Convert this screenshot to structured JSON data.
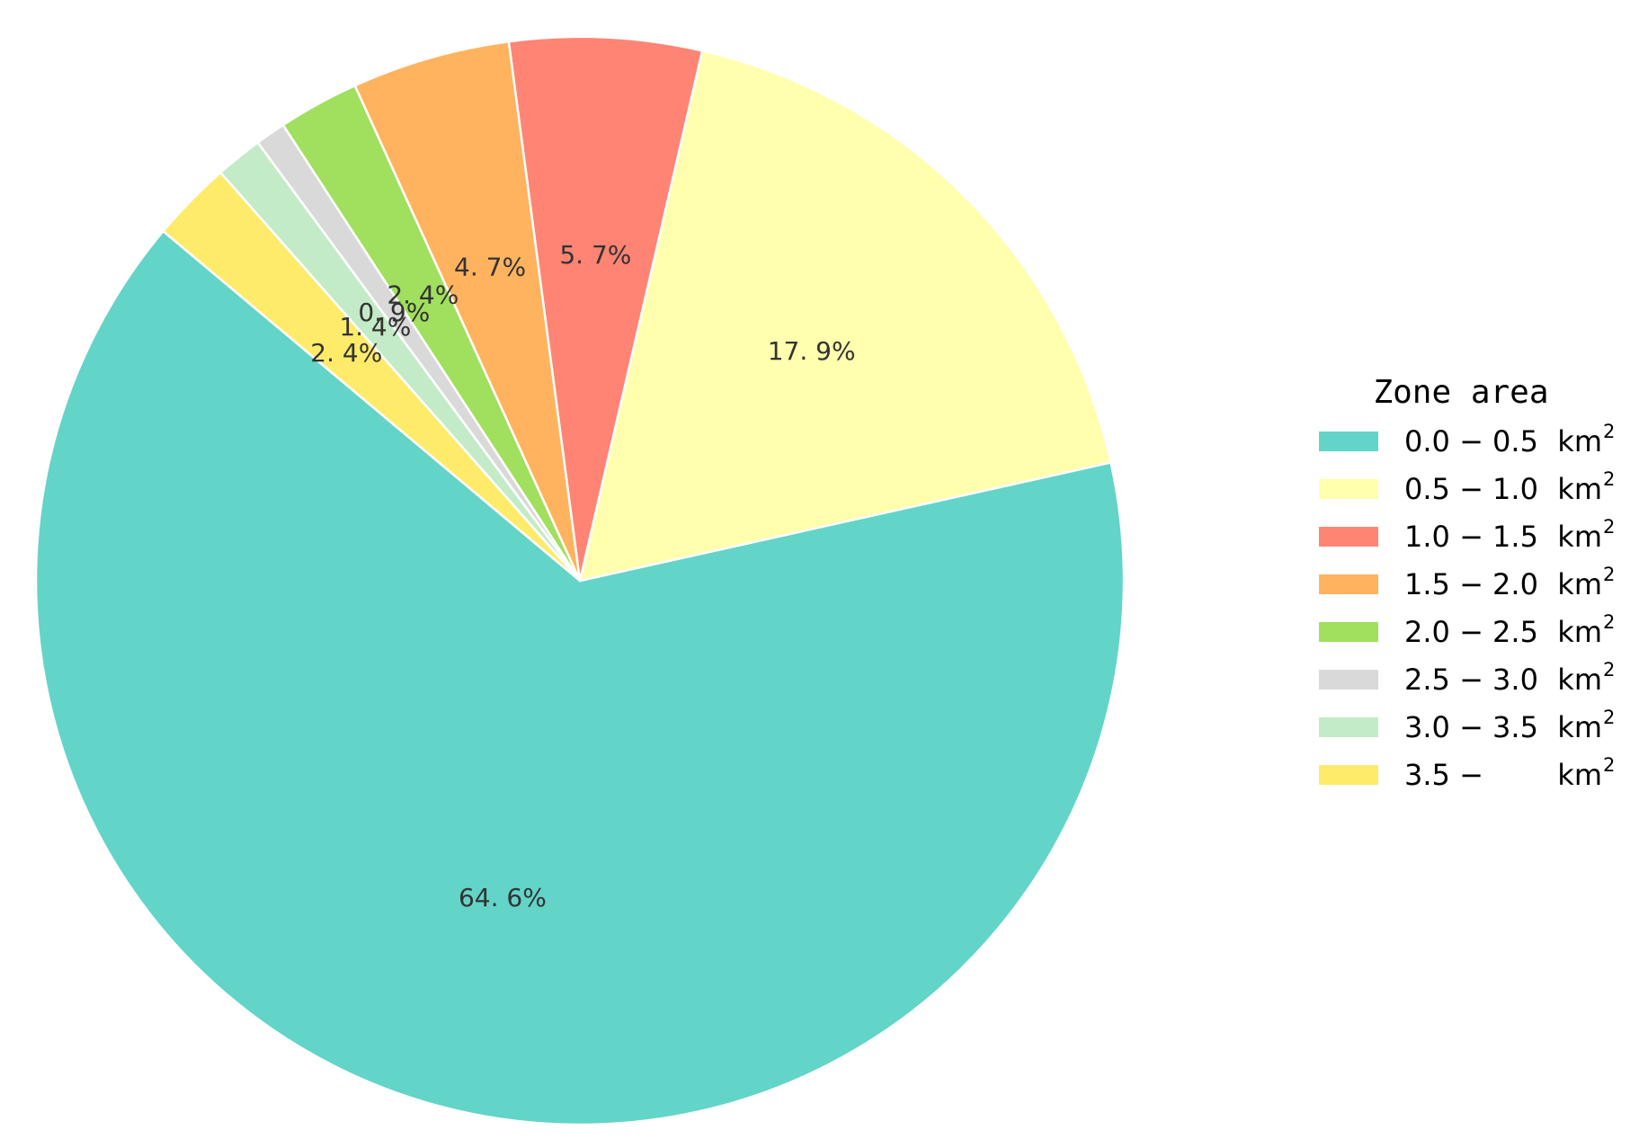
{
  "chart_data": {
    "type": "pie",
    "legend": {
      "title": "Zone area",
      "placement": "right",
      "unit": "km",
      "unit_superscript": "2"
    },
    "slices": [
      {
        "label": "0.0 − 0.5",
        "value": 64.6,
        "pct_label": "64. 6%",
        "color": "#63D4C8"
      },
      {
        "label": "0.5 − 1.0",
        "value": 17.9,
        "pct_label": "17. 9%",
        "color": "#FFFFAD"
      },
      {
        "label": "1.0 − 1.5",
        "value": 5.7,
        "pct_label": "5. 7%",
        "color": "#FF8474"
      },
      {
        "label": "1.5 − 2.0",
        "value": 4.7,
        "pct_label": "4. 7%",
        "color": "#FFB35E"
      },
      {
        "label": "2.0 − 2.5",
        "value": 2.4,
        "pct_label": "2. 4%",
        "color": "#A1E05E"
      },
      {
        "label": "2.5 − 3.0",
        "value": 0.9,
        "pct_label": "0. 9%",
        "color": "#D9D9D9"
      },
      {
        "label": "3.0 − 3.5",
        "value": 1.4,
        "pct_label": "1. 4%",
        "color": "#C4EBC7"
      },
      {
        "label": "3.5 −",
        "value": 2.4,
        "pct_label": "2. 4%",
        "color": "#FFEB6A"
      }
    ]
  }
}
